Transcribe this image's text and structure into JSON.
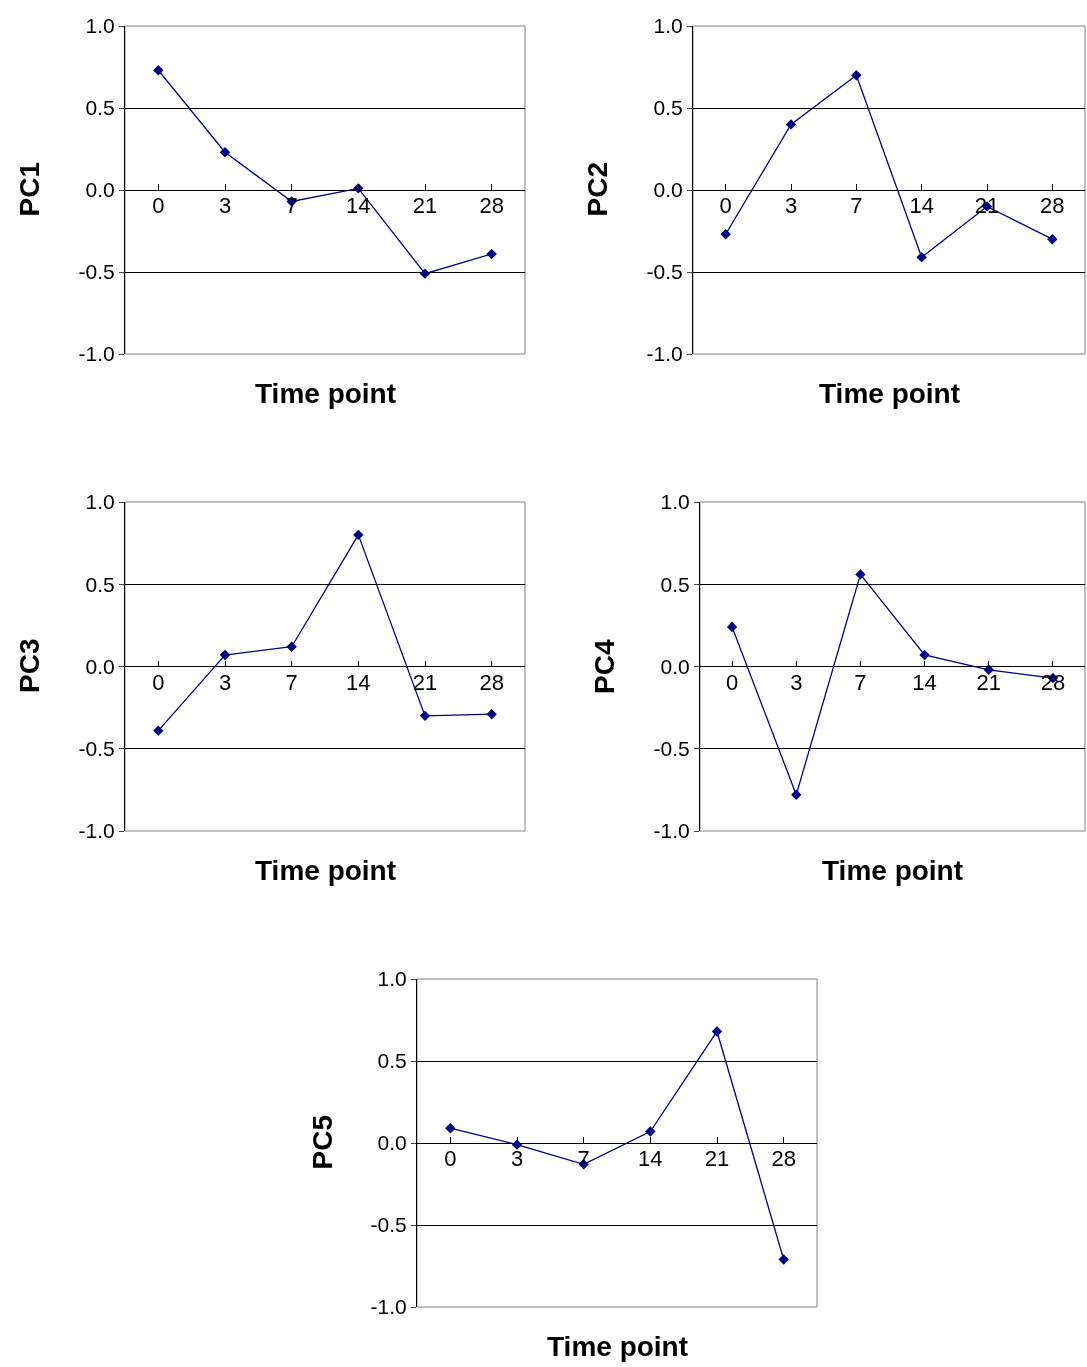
{
  "chart_data": [
    {
      "type": "line",
      "ylabel": "PC1",
      "xlabel": "Time point",
      "categories": [
        "0",
        "3",
        "7",
        "14",
        "21",
        "28"
      ],
      "values": [
        0.73,
        0.23,
        -0.07,
        0.01,
        -0.51,
        -0.39
      ],
      "color": "#000080",
      "marker": "diamond",
      "grid": "y",
      "ylim": [
        -1,
        1
      ],
      "yticks": [
        {
          "value": -1,
          "label": "-1.0"
        },
        {
          "value": -0.5,
          "label": "-0.5"
        },
        {
          "value": 0,
          "label": "0.0"
        },
        {
          "value": 0.5,
          "label": "0.5"
        },
        {
          "value": 1,
          "label": "1.0"
        }
      ]
    },
    {
      "type": "line",
      "ylabel": "PC2",
      "xlabel": "Time point",
      "categories": [
        "0",
        "3",
        "7",
        "14",
        "21",
        "28"
      ],
      "values": [
        -0.27,
        0.4,
        0.7,
        -0.41,
        -0.1,
        -0.3
      ],
      "color": "#000080",
      "marker": "diamond",
      "grid": "y",
      "ylim": [
        -1,
        1
      ],
      "yticks": [
        {
          "value": -1,
          "label": "-1.0"
        },
        {
          "value": -0.5,
          "label": "-0.5"
        },
        {
          "value": 0,
          "label": "0.0"
        },
        {
          "value": 0.5,
          "label": "0.5"
        },
        {
          "value": 1,
          "label": "1.0"
        }
      ]
    },
    {
      "type": "line",
      "ylabel": "PC3",
      "xlabel": "Time point",
      "categories": [
        "0",
        "3",
        "7",
        "14",
        "21",
        "28"
      ],
      "values": [
        -0.39,
        0.07,
        0.12,
        0.8,
        -0.3,
        -0.29
      ],
      "color": "#000080",
      "marker": "diamond",
      "grid": "y",
      "ylim": [
        -1,
        1
      ],
      "yticks": [
        {
          "value": -1,
          "label": "-1.0"
        },
        {
          "value": -0.5,
          "label": "-0.5"
        },
        {
          "value": 0,
          "label": "0.0"
        },
        {
          "value": 0.5,
          "label": "0.5"
        },
        {
          "value": 1,
          "label": "1.0"
        }
      ]
    },
    {
      "type": "line",
      "ylabel": "PC4",
      "xlabel": "Time point",
      "categories": [
        "0",
        "3",
        "7",
        "14",
        "21",
        "28"
      ],
      "values": [
        0.24,
        -0.78,
        0.56,
        0.07,
        -0.02,
        -0.07
      ],
      "color": "#000080",
      "marker": "diamond",
      "grid": "y",
      "ylim": [
        -1,
        1
      ],
      "yticks": [
        {
          "value": -1,
          "label": "-1.0"
        },
        {
          "value": -0.5,
          "label": "-0.5"
        },
        {
          "value": 0,
          "label": "0.0"
        },
        {
          "value": 0.5,
          "label": "0.5"
        },
        {
          "value": 1,
          "label": "1.0"
        }
      ]
    },
    {
      "type": "line",
      "ylabel": "PC5",
      "xlabel": "Time point",
      "categories": [
        "0",
        "3",
        "7",
        "14",
        "21",
        "28"
      ],
      "values": [
        0.09,
        -0.01,
        -0.13,
        0.07,
        0.68,
        -0.71
      ],
      "color": "#000080",
      "marker": "diamond",
      "grid": "y",
      "ylim": [
        -1,
        1
      ],
      "yticks": [
        {
          "value": -1,
          "label": "-1.0"
        },
        {
          "value": -0.5,
          "label": "-0.5"
        },
        {
          "value": 0,
          "label": "0.0"
        },
        {
          "value": 0.5,
          "label": "0.5"
        },
        {
          "value": 1,
          "label": "1.0"
        }
      ]
    }
  ]
}
